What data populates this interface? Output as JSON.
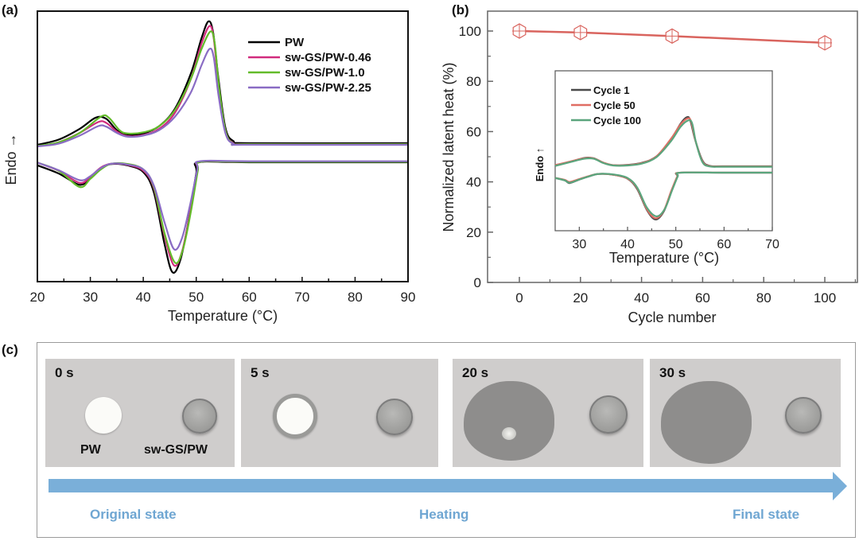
{
  "panel_labels": {
    "a": "(a)",
    "b": "(b)",
    "c": "(c)"
  },
  "chart_data": [
    {
      "id": "a",
      "type": "line",
      "title": "",
      "xlabel": "Temperature (°C)",
      "ylabel": "Endo →",
      "xlim": [
        20,
        90
      ],
      "ylim": [
        0,
        100
      ],
      "y_units": "heat flow (a.u., estimated)",
      "xticks": [
        20,
        30,
        40,
        50,
        60,
        70,
        80,
        90
      ],
      "yticks": [],
      "grid": false,
      "legend_position": "top-right",
      "series": [
        {
          "name": "PW",
          "color": "#000000",
          "heating": {
            "x": [
              20,
              24,
              28,
              31,
              33,
              35,
              37,
              40,
              43,
              46,
              49,
              51,
              52.3,
              53.2,
              54.2,
              55.5,
              57,
              60,
              90
            ],
            "y": [
              50.6,
              52.5,
              56.5,
              60.6,
              60.2,
              56,
              54.4,
              54.8,
              57.5,
              64,
              77,
              90,
              96.2,
              92,
              75,
              57,
              52,
              51.2,
              51.2
            ]
          },
          "cooling": {
            "x": [
              20,
              24,
              28,
              30,
              32,
              34,
              37,
              40,
              42,
              44,
              45.5,
              47,
              48.5,
              50,
              50.5,
              60,
              90
            ],
            "y": [
              43,
              40,
              35.8,
              38.5,
              42,
              43.5,
              43,
              40.5,
              33,
              14,
              3.5,
              8,
              22,
              40,
              44.1,
              44.1,
              44.1
            ]
          }
        },
        {
          "name": "sw-GS/PW-0.46",
          "color": "#d12c7e",
          "heating": {
            "x": [
              20,
              24,
              28,
              31.5,
              33,
              35,
              37,
              40,
              43,
              46,
              49,
              51,
              52.5,
              53.3,
              54.2,
              55.5,
              57,
              60,
              90
            ],
            "y": [
              50,
              51.5,
              55,
              59,
              58.7,
              55.5,
              53.8,
              54.2,
              56.5,
              62.5,
              75,
              88,
              94.5,
              90,
              73,
              56,
              51.2,
              50.8,
              50.8
            ]
          },
          "cooling": {
            "x": [
              20,
              24,
              28,
              30,
              32,
              34,
              37,
              40,
              42,
              44,
              45.8,
              47.3,
              48.8,
              50.2,
              50.7,
              60,
              90
            ],
            "y": [
              44,
              41,
              36.5,
              38.8,
              42.2,
              43.6,
              43.2,
              41,
              34.5,
              17,
              6,
              11,
              25,
              41,
              44.3,
              44.3,
              44.3
            ]
          }
        },
        {
          "name": "sw-GS/PW-1.0",
          "color": "#63bb2a",
          "heating": {
            "x": [
              20,
              24,
              28,
              32,
              33.5,
              35.5,
              37,
              40,
              43,
              46,
              49,
              51,
              52.7,
              53.5,
              54.3,
              55.5,
              57,
              60,
              90
            ],
            "y": [
              50.2,
              51.5,
              55,
              61,
              60.6,
              56,
              54.8,
              55.2,
              57.5,
              63.5,
              75,
              86,
              92.5,
              88,
              72,
              56,
              51,
              50.8,
              50.8
            ]
          },
          "cooling": {
            "x": [
              20,
              24,
              28,
              30,
              32,
              34,
              37,
              40,
              42,
              44,
              46,
              47.5,
              49,
              50.3,
              50.8,
              60,
              90
            ],
            "y": [
              44,
              41,
              35,
              38,
              41.5,
              43.6,
              43.5,
              41.5,
              35,
              18,
              7,
              12,
              26,
              41,
              44.3,
              44.3,
              44.3
            ]
          }
        },
        {
          "name": "sw-GS/PW-2.25",
          "color": "#8a6cc4",
          "heating": {
            "x": [
              20,
              24,
              28,
              31.5,
              33,
              35,
              37,
              40,
              43,
              46,
              49,
              51,
              52.5,
              53.3,
              54.2,
              55.5,
              57,
              60,
              90
            ],
            "y": [
              50,
              51,
              54,
              57.5,
              57.3,
              55,
              53.6,
              54,
              56,
              61,
              70,
              80,
              86,
              83,
              69,
              55,
              51,
              50.6,
              50.6
            ]
          },
          "cooling": {
            "x": [
              20,
              24,
              28,
              30,
              32,
              34,
              37,
              40,
              42,
              44,
              45.8,
              47.3,
              48.8,
              50.2,
              50.7,
              60,
              90
            ],
            "y": [
              44,
              41.2,
              37.5,
              39,
              42,
              43.6,
              43.3,
              41.5,
              35.5,
              22,
              12,
              16,
              28,
              41.5,
              44.5,
              44.5,
              44.5
            ]
          }
        }
      ]
    },
    {
      "id": "b",
      "type": "line",
      "title": "",
      "xlabel": "Cycle number",
      "ylabel": "Normalized latent heat (%)",
      "xlim": [
        -10.4,
        110.6
      ],
      "ylim": [
        0,
        108
      ],
      "xticks": [
        0,
        20,
        40,
        60,
        80,
        100
      ],
      "yticks": [
        0,
        20,
        40,
        60,
        80,
        100
      ],
      "grid": false,
      "marker": "hexagon-crosshair",
      "color": "#d9645e",
      "series": [
        {
          "name": "Normalized latent heat",
          "x": [
            0,
            20,
            50,
            100
          ],
          "y": [
            100,
            99.4,
            98.0,
            95.3
          ]
        }
      ]
    },
    {
      "id": "b-inset",
      "type": "line",
      "title": "",
      "xlabel": "Temperature (°C)",
      "ylabel": "Endo ↑",
      "xlim": [
        25,
        70
      ],
      "ylim": [
        0,
        100
      ],
      "y_units": "heat flow (a.u., estimated)",
      "xticks": [
        30,
        40,
        50,
        60,
        70
      ],
      "yticks": [],
      "grid": false,
      "legend_position": "top-left",
      "series": [
        {
          "name": "Cycle 1",
          "color": "#4a4a4a",
          "heating": {
            "x": [
              25,
              28,
              31,
              33,
              35,
              37,
              40,
              43,
              46,
              49,
              51,
              52.3,
              53,
              54,
              55.5,
              57,
              60,
              70
            ],
            "y": [
              41,
              43,
              45.5,
              45.3,
              42.5,
              41,
              41.2,
              42.5,
              46.5,
              57,
              67,
              71,
              69,
              57,
              44,
              40.6,
              40.3,
              40.3
            ]
          },
          "cooling": {
            "x": [
              25,
              27,
              28,
              30,
              32,
              34,
              37,
              40,
              42,
              44,
              45.8,
              47.5,
              49,
              50.3,
              50.8,
              60,
              70
            ],
            "y": [
              33,
              31.5,
              29.8,
              32,
              34,
              35.5,
              35,
              32.5,
              26,
              13,
              7,
              12,
              24,
              33.5,
              36.3,
              36.3,
              36.3
            ]
          }
        },
        {
          "name": "Cycle 50",
          "color": "#e06d63",
          "heating": {
            "x": [
              25,
              28,
              31,
              33,
              35,
              37,
              40,
              43,
              46,
              49,
              51,
              52.5,
              53.2,
              54.1,
              55.5,
              57,
              60,
              70
            ],
            "y": [
              41,
              43.2,
              45.3,
              45.2,
              42.6,
              41,
              41,
              42.3,
              46.5,
              57.5,
              66.5,
              70.3,
              68,
              56,
              43.5,
              40.4,
              40.2,
              40.2
            ]
          },
          "cooling": {
            "x": [
              25,
              27,
              28,
              30,
              32,
              34,
              37,
              40,
              42,
              44,
              45.8,
              47.5,
              49,
              50.3,
              50.8,
              60,
              70
            ],
            "y": [
              33,
              31.8,
              30.5,
              32.3,
              34.2,
              35.5,
              35,
              32.6,
              26.5,
              13.5,
              7.8,
              12.5,
              24.5,
              34,
              36.3,
              36.3,
              36.3
            ]
          }
        },
        {
          "name": "Cycle 100",
          "color": "#5aa57d",
          "heating": {
            "x": [
              25,
              28,
              31,
              33,
              35,
              37,
              40,
              43,
              46,
              49,
              51,
              52.6,
              53.4,
              54.2,
              55.5,
              57,
              60,
              70
            ],
            "y": [
              40.5,
              42.8,
              45,
              45,
              42.3,
              40.8,
              40.8,
              42,
              46,
              56,
              65,
              69,
              67,
              55,
              43,
              40.2,
              40,
              40
            ]
          },
          "cooling": {
            "x": [
              25,
              27,
              28,
              30,
              32,
              34,
              37,
              40,
              42,
              44,
              46,
              47.7,
              49.2,
              50.4,
              50.9,
              60,
              70
            ],
            "y": [
              33,
              31.5,
              30,
              32,
              34,
              35.5,
              35.2,
              33,
              27,
              14.5,
              9,
              13.5,
              25,
              34,
              36.3,
              36.3,
              36.3
            ]
          }
        }
      ]
    }
  ],
  "panel_c": {
    "photos": [
      {
        "time": "0 s",
        "labels": [
          "PW",
          "sw-GS/PW"
        ]
      },
      {
        "time": "5 s",
        "labels": []
      },
      {
        "time": "20 s",
        "labels": []
      },
      {
        "time": "30 s",
        "labels": []
      }
    ],
    "arrow_color": "#7aafd9",
    "stages": [
      "Original state",
      "Heating",
      "Final state"
    ]
  }
}
